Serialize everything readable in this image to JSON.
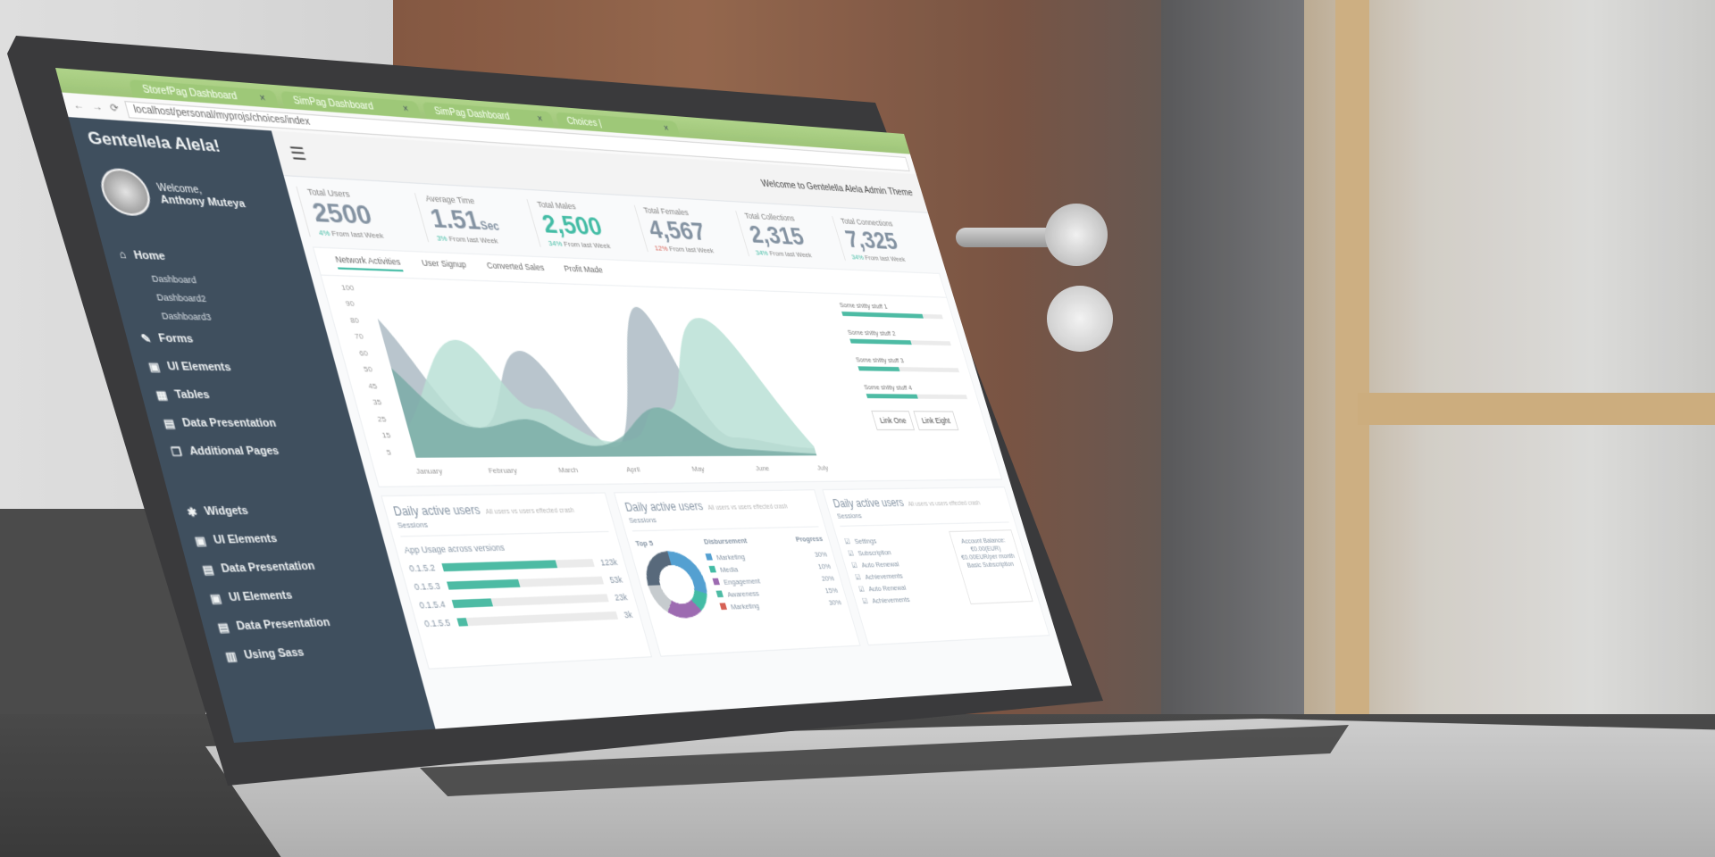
{
  "browser": {
    "tabs": [
      {
        "label": "StorefPag Dashboard"
      },
      {
        "label": "SimPag Dashboard"
      },
      {
        "label": "SimPag Dashboard"
      },
      {
        "label": "Choices |"
      }
    ],
    "address": "localhost/personal/myprojs/choices/index"
  },
  "sidebar": {
    "brand": "Gentellela Alela!",
    "welcome": "Welcome,",
    "user": "Anthony Muteya",
    "items": [
      {
        "label": "Home"
      },
      {
        "label": "Dashboard"
      },
      {
        "label": "Dashboard2"
      },
      {
        "label": "Dashboard3"
      },
      {
        "label": "Forms"
      },
      {
        "label": "UI Elements"
      },
      {
        "label": "Tables"
      },
      {
        "label": "Data Presentation"
      },
      {
        "label": "Additional Pages"
      },
      {
        "label": "Widgets"
      },
      {
        "label": "UI Elements"
      },
      {
        "label": "Data Presentation"
      },
      {
        "label": "UI Elements"
      },
      {
        "label": "Data Presentation"
      },
      {
        "label": "Using Sass"
      }
    ]
  },
  "topbar": {
    "welcome": "Welcome to Gentelella Alela Admin Theme"
  },
  "stats": [
    {
      "label": "Total Users",
      "value": "2500",
      "pct": "4%",
      "sub": "From last Week",
      "trend": "up"
    },
    {
      "label": "Average Time",
      "value": "1.51",
      "unit": "Sec",
      "pct": "3%",
      "sub": "From last Week",
      "trend": "up"
    },
    {
      "label": "Total Males",
      "value": "2,500",
      "pct": "34%",
      "sub": "From last Week",
      "trend": "up"
    },
    {
      "label": "Total Females",
      "value": "4,567",
      "pct": "12%",
      "sub": "From last Week",
      "trend": "down"
    },
    {
      "label": "Total Collections",
      "value": "2,315",
      "pct": "34%",
      "sub": "From last Week",
      "trend": "up"
    },
    {
      "label": "Total Connections",
      "value": "7,325",
      "pct": "34%",
      "sub": "From last Week",
      "trend": "up"
    }
  ],
  "chart": {
    "tabs": [
      "Network Activities",
      "User Signup",
      "Converted Sales",
      "Profit Made"
    ],
    "yticks": [
      "100",
      "90",
      "80",
      "70",
      "60",
      "50",
      "45",
      "35",
      "25",
      "15",
      "5"
    ],
    "months": [
      "January",
      "February",
      "March",
      "April",
      "May",
      "June",
      "July"
    ],
    "side": [
      {
        "label": "Some shitty stuff 1",
        "value": 80
      },
      {
        "label": "Some shitty stuff 2",
        "value": 60
      },
      {
        "label": "Some shitty stuff 3",
        "value": 40
      },
      {
        "label": "Some shitty stuff 4",
        "value": 50
      }
    ],
    "links": [
      "Link One",
      "Link Eight"
    ]
  },
  "cards": [
    {
      "title": "Daily active users",
      "note": "All users vs users effected crash",
      "sub": "Sessions",
      "section": "App Usage across versions",
      "rows": [
        {
          "v": "0.1.5.2",
          "n": "123k",
          "p": 75
        },
        {
          "v": "0.1.5.3",
          "n": "53k",
          "p": 45
        },
        {
          "v": "0.1.5.4",
          "n": "23k",
          "p": 25
        },
        {
          "v": "0.1.5.5",
          "n": "3k",
          "p": 6
        }
      ]
    },
    {
      "title": "Daily active users",
      "note": "All users vs users effected crash",
      "sub": "Sessions",
      "cols": [
        "Top 5",
        "Disbursement",
        "Progress"
      ],
      "rows": [
        {
          "l": "Marketing",
          "p": "30%",
          "c": "#3498db"
        },
        {
          "l": "Media",
          "p": "10%",
          "c": "#1abb9c"
        },
        {
          "l": "Engagement",
          "p": "20%",
          "c": "#9b59b6"
        },
        {
          "l": "Awareness",
          "p": "15%",
          "c": "#26b99a"
        },
        {
          "l": "Marketing",
          "p": "30%",
          "c": "#e74c3c"
        }
      ]
    },
    {
      "title": "Daily active users",
      "note": "All users vs users effected crash",
      "sub": "Sessions",
      "list": [
        "Settings",
        "Subscription",
        "Auto Renewal",
        "Achievements",
        "Auto Renewal",
        "Achievements"
      ],
      "account": {
        "title": "Account Balance:",
        "amount": "€0.00(EUR)",
        "line": "€0.00EUR/per month",
        "plan": "Basic Subscription"
      }
    }
  ]
}
